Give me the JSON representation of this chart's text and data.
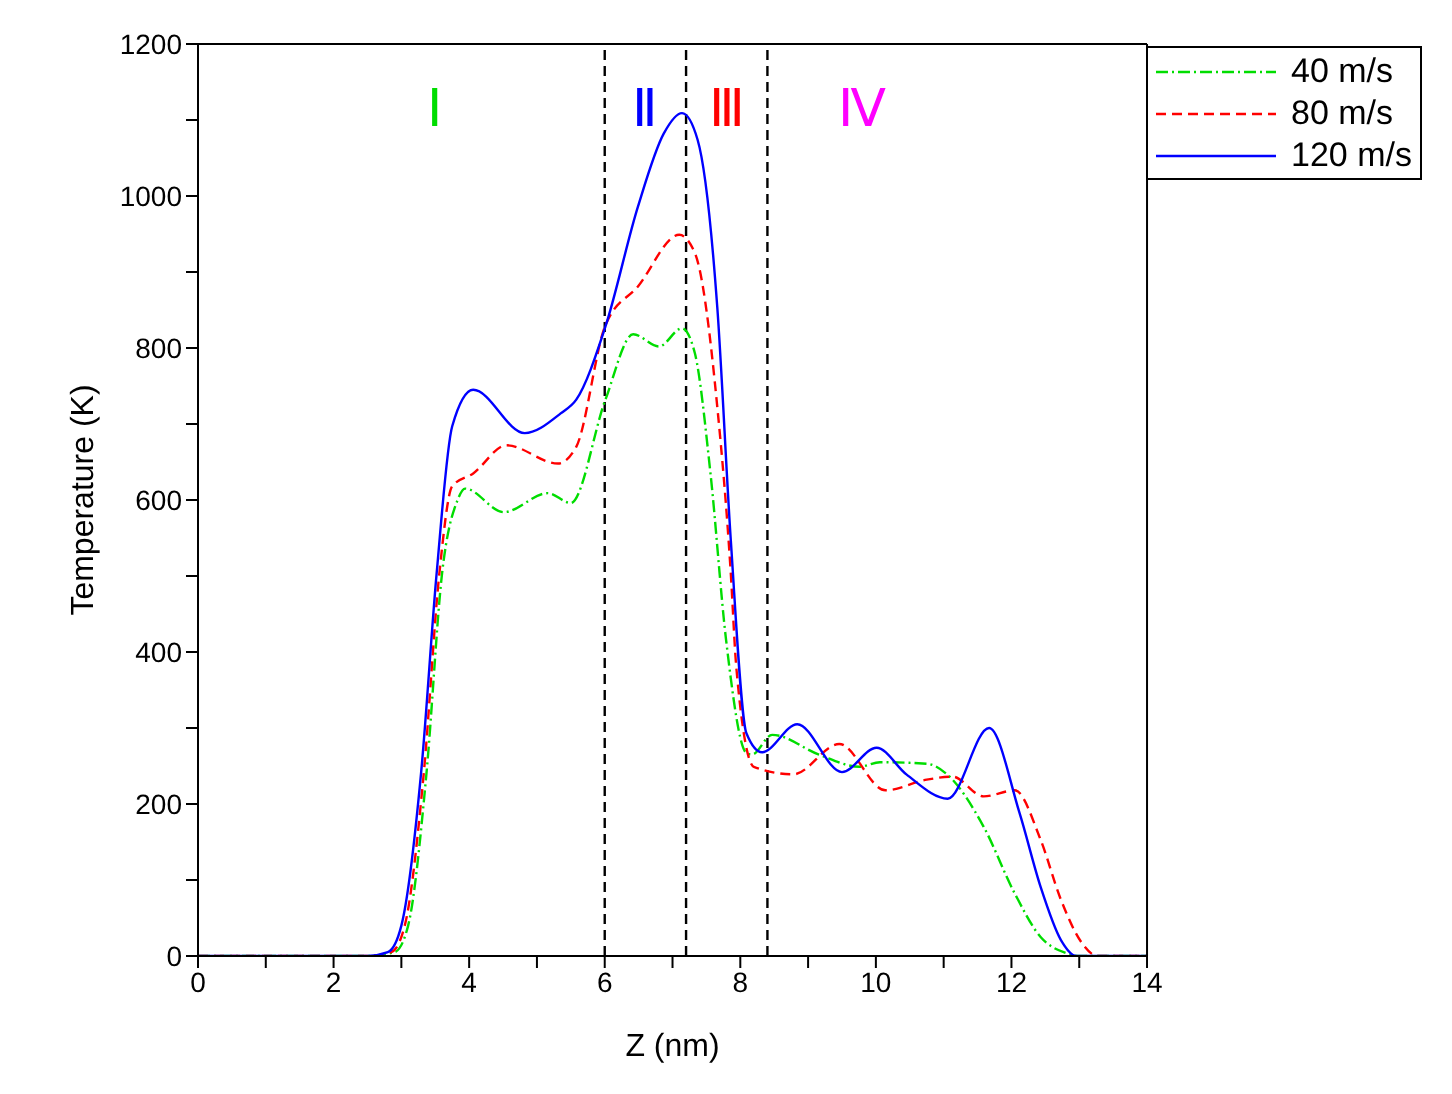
{
  "chart_data": {
    "type": "line",
    "xlabel": "Z (nm)",
    "ylabel": "Temperature (K)",
    "xlim": [
      0,
      14
    ],
    "xticks": [
      0,
      {
        "value": 1,
        "label": null
      },
      2,
      {
        "value": 3,
        "label": null
      },
      4,
      {
        "value": 5,
        "label": null
      },
      6,
      {
        "value": 7,
        "label": null
      },
      8,
      {
        "value": 9,
        "label": null
      },
      10,
      {
        "value": 11,
        "label": null
      },
      12,
      {
        "value": 13,
        "label": null
      },
      14
    ],
    "ylim": [
      0,
      1200
    ],
    "yticks": [
      0,
      {
        "value": 100,
        "label": null
      },
      200,
      {
        "value": 300,
        "label": null
      },
      400,
      {
        "value": 500,
        "label": null
      },
      600,
      {
        "value": 700,
        "label": null
      },
      800,
      {
        "value": 900,
        "label": null
      },
      1000,
      {
        "value": 1100,
        "label": null
      },
      1200
    ],
    "grid": false,
    "legend": "top right",
    "marker": "none",
    "series": [
      {
        "name": "40 m/s",
        "color": "#00dd00",
        "line_style": "dashdot",
        "x": [
          0,
          2.5,
          2.9,
          3.1,
          3.37,
          3.6,
          3.83,
          3.94,
          4.51,
          5.16,
          5.5,
          6.01,
          6.42,
          6.8,
          7.14,
          7.33,
          7.56,
          7.79,
          8.09,
          8.17,
          8.47,
          9.16,
          9.76,
          10.06,
          10.75,
          11.05,
          11.59,
          12.05,
          12.43,
          12.8,
          13.0,
          14
        ],
        "values": [
          0,
          0,
          5,
          40,
          240,
          503,
          600,
          615,
          584,
          609,
          596,
          732,
          818,
          802,
          826,
          793,
          635,
          416,
          267,
          265,
          291,
          265,
          249,
          255,
          253,
          239,
          170,
          82,
          25,
          4,
          0,
          0
        ]
      },
      {
        "name": "80 m/s",
        "color": "#ff0000",
        "line_style": "dashed",
        "x": [
          0,
          2.5,
          2.85,
          3.05,
          3.33,
          3.56,
          3.75,
          4.06,
          4.55,
          5.31,
          5.58,
          6.01,
          6.49,
          7.1,
          7.33,
          7.66,
          7.86,
          7.94,
          8.2,
          8.78,
          9.46,
          10.14,
          10.75,
          11.13,
          11.59,
          12.05,
          12.43,
          12.73,
          13.04,
          13.27,
          14
        ],
        "values": [
          0,
          0,
          5,
          40,
          240,
          503,
          618,
          635,
          672,
          648,
          670,
          830,
          881,
          949,
          925,
          723,
          503,
          381,
          249,
          239,
          279,
          218,
          232,
          236,
          210,
          218,
          153,
          74,
          17,
          0,
          0
        ]
      },
      {
        "name": "120 m/s",
        "color": "#0000ff",
        "line_style": "solid",
        "x": [
          0,
          2.5,
          2.8,
          3.0,
          3.29,
          3.52,
          3.75,
          4.06,
          4.82,
          5.35,
          5.58,
          6.01,
          6.49,
          6.87,
          7.14,
          7.37,
          7.66,
          7.86,
          8.09,
          8.32,
          8.84,
          9.5,
          10.01,
          10.45,
          11.06,
          11.67,
          12.12,
          12.43,
          12.73,
          12.96,
          14
        ],
        "values": [
          0,
          0,
          5,
          40,
          240,
          503,
          697,
          745,
          688,
          714,
          732,
          828,
          986,
          1082,
          1109,
          1074,
          854,
          547,
          293,
          268,
          305,
          242,
          274,
          239,
          207,
          300,
          188,
          91,
          21,
          0,
          0
        ]
      }
    ],
    "ref_lines": [
      {
        "axis": "x",
        "value": 6,
        "color": "#000000",
        "line_style": "dashed"
      },
      {
        "axis": "x",
        "value": 7.2,
        "color": "#000000",
        "line_style": "dashed"
      },
      {
        "axis": "x",
        "value": 8.4,
        "color": "#000000",
        "line_style": "dashed"
      }
    ],
    "annotations": [
      "Ⅰ",
      "Ⅱ",
      "Ⅲ",
      "Ⅳ"
    ]
  }
}
